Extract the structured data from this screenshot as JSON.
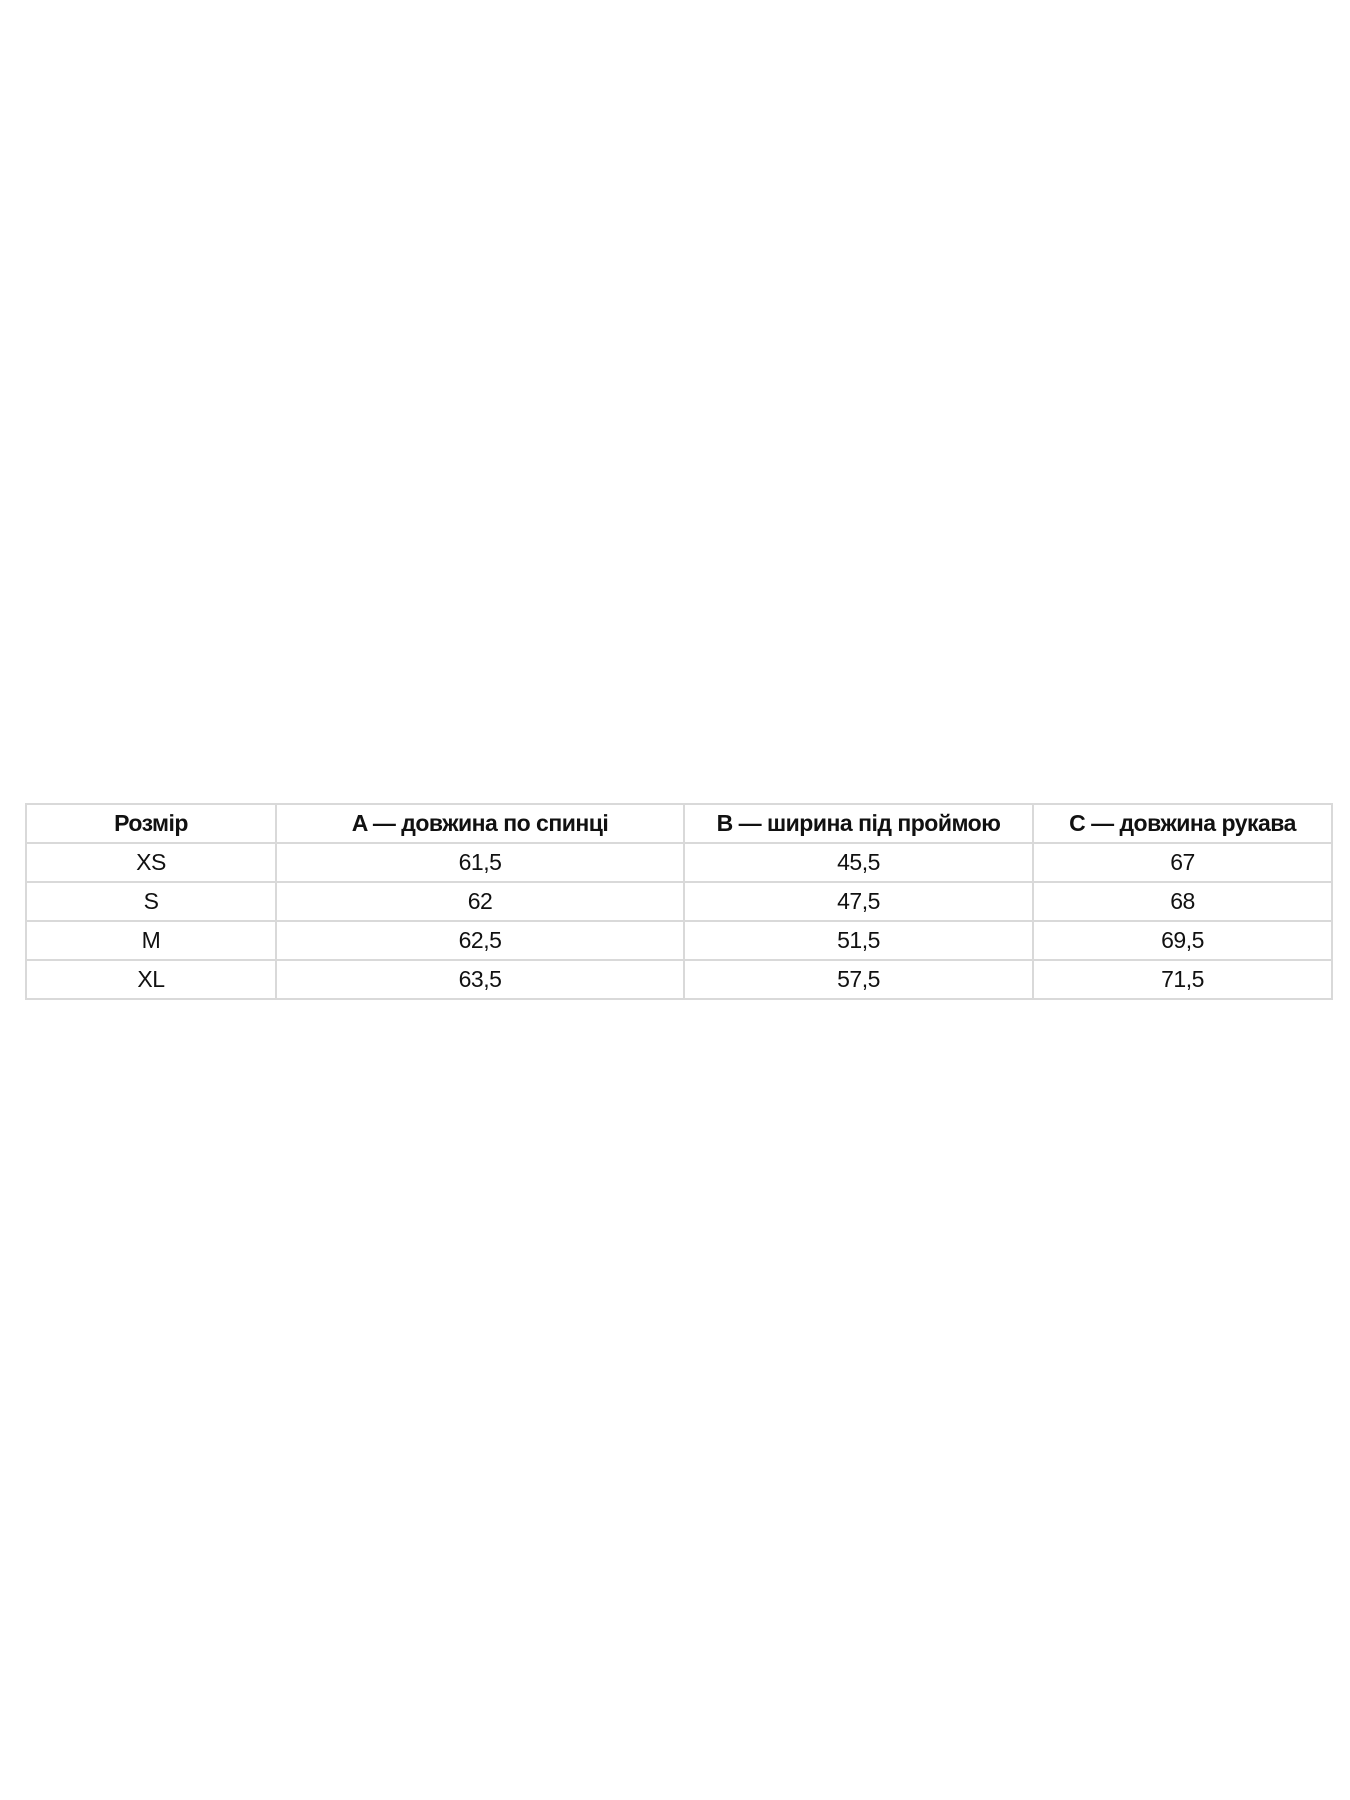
{
  "table": {
    "headers": [
      "Розмір",
      "A — довжина по спинці",
      "B — ширина під проймою",
      "C — довжина рукава"
    ],
    "rows": [
      [
        "XS",
        "61,5",
        "45,5",
        "67"
      ],
      [
        "S",
        "62",
        "47,5",
        "68"
      ],
      [
        "M",
        "62,5",
        "51,5",
        "69,5"
      ],
      [
        "XL",
        "63,5",
        "57,5",
        "71,5"
      ]
    ]
  }
}
